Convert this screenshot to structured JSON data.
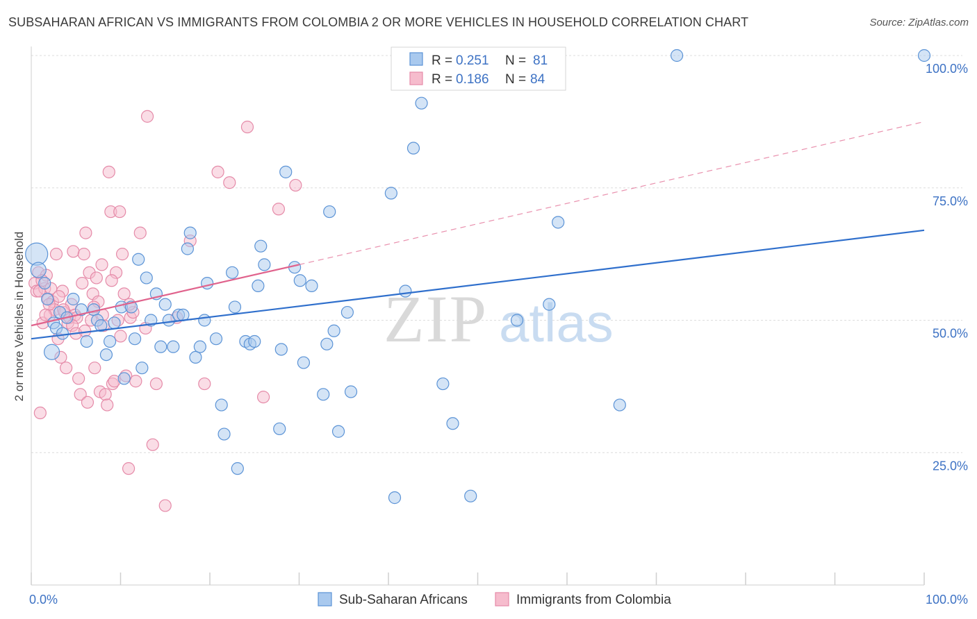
{
  "header": {
    "title": "SUBSAHARAN AFRICAN VS IMMIGRANTS FROM COLOMBIA 2 OR MORE VEHICLES IN HOUSEHOLD CORRELATION CHART",
    "source": "Source: ZipAtlas.com"
  },
  "watermark": {
    "part1": "ZIP",
    "part2": "atlas"
  },
  "colors": {
    "blue": "#5b93d6",
    "blue_fill": "#a9c9ee",
    "blue_line": "#2f6fcc",
    "pink": "#e58aa8",
    "pink_fill": "#f6bccd",
    "pink_line": "#e0628c",
    "grid": "#dcdcdc",
    "axis_text": "#3d72c4"
  },
  "legend": {
    "r_label": "R =",
    "n_label": "N =",
    "rows": [
      {
        "r": "0.251",
        "n": "81"
      },
      {
        "r": "0.186",
        "n": "84"
      }
    ]
  },
  "chart_data": {
    "type": "scatter",
    "title": "SUBSAHARAN AFRICAN VS IMMIGRANTS FROM COLOMBIA 2 OR MORE VEHICLES IN HOUSEHOLD CORRELATION CHART",
    "xlabel": "",
    "ylabel": "2 or more Vehicles in Household",
    "xlim": [
      0,
      100
    ],
    "ylim": [
      0,
      102
    ],
    "x_tick_labels": [
      "0.0%",
      "100.0%"
    ],
    "y_ticks": [
      25,
      50,
      75,
      100
    ],
    "y_tick_labels": [
      "25.0%",
      "50.0%",
      "75.0%",
      "100.0%"
    ],
    "grid": true,
    "legend_position": "top-center",
    "series": [
      {
        "name": "Sub-Saharan Africans",
        "r": 0.251,
        "n": 81,
        "trend": {
          "x": [
            0,
            100
          ],
          "y": [
            46.5,
            67.0
          ]
        },
        "points": [
          {
            "x": 0.6,
            "y": 62.5,
            "s": 3
          },
          {
            "x": 0.8,
            "y": 59.5,
            "s": 2
          },
          {
            "x": 1.5,
            "y": 57.0
          },
          {
            "x": 1.8,
            "y": 54.0
          },
          {
            "x": 2.3,
            "y": 44.0,
            "s": 2
          },
          {
            "x": 2.5,
            "y": 49.5
          },
          {
            "x": 2.8,
            "y": 48.5
          },
          {
            "x": 3.2,
            "y": 51.5
          },
          {
            "x": 3.5,
            "y": 47.5
          },
          {
            "x": 4.0,
            "y": 50.5
          },
          {
            "x": 4.7,
            "y": 54.0
          },
          {
            "x": 5.6,
            "y": 52.0
          },
          {
            "x": 6.2,
            "y": 46.0
          },
          {
            "x": 7.0,
            "y": 52.0
          },
          {
            "x": 7.4,
            "y": 50.0
          },
          {
            "x": 7.8,
            "y": 49.0
          },
          {
            "x": 8.4,
            "y": 43.5
          },
          {
            "x": 8.8,
            "y": 46.0
          },
          {
            "x": 9.3,
            "y": 49.5
          },
          {
            "x": 10.1,
            "y": 52.5
          },
          {
            "x": 10.4,
            "y": 39.0
          },
          {
            "x": 11.2,
            "y": 52.5
          },
          {
            "x": 11.6,
            "y": 46.5
          },
          {
            "x": 12.0,
            "y": 61.5
          },
          {
            "x": 12.4,
            "y": 41.0
          },
          {
            "x": 12.9,
            "y": 58.0
          },
          {
            "x": 13.4,
            "y": 50.0
          },
          {
            "x": 14.0,
            "y": 55.0
          },
          {
            "x": 14.5,
            "y": 45.0
          },
          {
            "x": 15.0,
            "y": 53.0
          },
          {
            "x": 15.4,
            "y": 50.0
          },
          {
            "x": 15.9,
            "y": 45.0
          },
          {
            "x": 16.5,
            "y": 51.0
          },
          {
            "x": 17.0,
            "y": 51.0
          },
          {
            "x": 17.5,
            "y": 63.5
          },
          {
            "x": 17.8,
            "y": 66.5
          },
          {
            "x": 18.4,
            "y": 43.0
          },
          {
            "x": 18.9,
            "y": 45.0
          },
          {
            "x": 19.4,
            "y": 50.0
          },
          {
            "x": 19.7,
            "y": 57.0
          },
          {
            "x": 20.7,
            "y": 46.5
          },
          {
            "x": 21.3,
            "y": 34.0
          },
          {
            "x": 21.6,
            "y": 28.5
          },
          {
            "x": 22.5,
            "y": 59.0
          },
          {
            "x": 22.8,
            "y": 52.5
          },
          {
            "x": 23.1,
            "y": 22.0
          },
          {
            "x": 24.0,
            "y": 46.0
          },
          {
            "x": 24.5,
            "y": 45.5
          },
          {
            "x": 25.0,
            "y": 46.0
          },
          {
            "x": 25.4,
            "y": 56.5
          },
          {
            "x": 25.7,
            "y": 64.0
          },
          {
            "x": 26.1,
            "y": 60.5
          },
          {
            "x": 27.8,
            "y": 29.5
          },
          {
            "x": 28.0,
            "y": 44.5
          },
          {
            "x": 28.5,
            "y": 78.0
          },
          {
            "x": 29.5,
            "y": 60.0
          },
          {
            "x": 30.1,
            "y": 57.5
          },
          {
            "x": 30.5,
            "y": 42.0
          },
          {
            "x": 31.4,
            "y": 56.5
          },
          {
            "x": 32.7,
            "y": 36.0
          },
          {
            "x": 33.1,
            "y": 45.5
          },
          {
            "x": 33.4,
            "y": 70.5
          },
          {
            "x": 33.9,
            "y": 48.0
          },
          {
            "x": 34.4,
            "y": 29.0
          },
          {
            "x": 35.4,
            "y": 51.5
          },
          {
            "x": 35.8,
            "y": 36.5
          },
          {
            "x": 40.3,
            "y": 74.0
          },
          {
            "x": 40.7,
            "y": 16.5
          },
          {
            "x": 41.9,
            "y": 55.5
          },
          {
            "x": 42.8,
            "y": 82.5
          },
          {
            "x": 43.7,
            "y": 91.0
          },
          {
            "x": 46.1,
            "y": 38.0
          },
          {
            "x": 47.2,
            "y": 30.5
          },
          {
            "x": 49.2,
            "y": 16.8
          },
          {
            "x": 54.4,
            "y": 50.0
          },
          {
            "x": 58.0,
            "y": 53.0
          },
          {
            "x": 59.0,
            "y": 68.5
          },
          {
            "x": 65.9,
            "y": 34.0
          },
          {
            "x": 72.3,
            "y": 100.0
          },
          {
            "x": 100.0,
            "y": 100.0
          }
        ]
      },
      {
        "name": "Immigrants from Colombia",
        "r": 0.186,
        "n": 84,
        "trend": {
          "x": [
            0,
            30
          ],
          "y": [
            49.0,
            60.5
          ],
          "dashed_to": {
            "x": 100,
            "y": 87.5
          }
        },
        "points": [
          {
            "x": 0.4,
            "y": 57.0
          },
          {
            "x": 0.6,
            "y": 55.5
          },
          {
            "x": 0.8,
            "y": 59.0
          },
          {
            "x": 1.0,
            "y": 32.5
          },
          {
            "x": 1.3,
            "y": 49.5
          },
          {
            "x": 1.5,
            "y": 56.0
          },
          {
            "x": 1.7,
            "y": 58.5
          },
          {
            "x": 1.9,
            "y": 54.0
          },
          {
            "x": 2.1,
            "y": 51.0
          },
          {
            "x": 2.4,
            "y": 53.5
          },
          {
            "x": 2.6,
            "y": 52.0
          },
          {
            "x": 2.8,
            "y": 62.5
          },
          {
            "x": 3.0,
            "y": 46.5
          },
          {
            "x": 3.3,
            "y": 43.0
          },
          {
            "x": 3.5,
            "y": 55.5
          },
          {
            "x": 3.7,
            "y": 51.5
          },
          {
            "x": 3.9,
            "y": 41.0
          },
          {
            "x": 4.1,
            "y": 49.5
          },
          {
            "x": 4.3,
            "y": 50.5
          },
          {
            "x": 4.5,
            "y": 53.0
          },
          {
            "x": 4.7,
            "y": 63.0
          },
          {
            "x": 4.9,
            "y": 51.0
          },
          {
            "x": 5.1,
            "y": 50.5
          },
          {
            "x": 5.3,
            "y": 39.0
          },
          {
            "x": 5.5,
            "y": 36.0
          },
          {
            "x": 5.7,
            "y": 57.0
          },
          {
            "x": 5.9,
            "y": 62.5
          },
          {
            "x": 6.1,
            "y": 66.5
          },
          {
            "x": 6.3,
            "y": 34.5
          },
          {
            "x": 6.5,
            "y": 59.0
          },
          {
            "x": 6.7,
            "y": 50.0
          },
          {
            "x": 6.9,
            "y": 55.0
          },
          {
            "x": 7.1,
            "y": 41.0
          },
          {
            "x": 7.3,
            "y": 58.0
          },
          {
            "x": 7.5,
            "y": 53.5
          },
          {
            "x": 7.7,
            "y": 36.5
          },
          {
            "x": 7.9,
            "y": 60.5
          },
          {
            "x": 8.1,
            "y": 49.0
          },
          {
            "x": 8.3,
            "y": 36.0
          },
          {
            "x": 8.5,
            "y": 34.0
          },
          {
            "x": 8.7,
            "y": 78.0
          },
          {
            "x": 8.9,
            "y": 70.5
          },
          {
            "x": 9.1,
            "y": 38.0
          },
          {
            "x": 9.3,
            "y": 38.5
          },
          {
            "x": 9.5,
            "y": 59.0
          },
          {
            "x": 9.7,
            "y": 50.0
          },
          {
            "x": 9.9,
            "y": 70.5
          },
          {
            "x": 10.2,
            "y": 62.5
          },
          {
            "x": 10.4,
            "y": 55.0
          },
          {
            "x": 10.6,
            "y": 39.5
          },
          {
            "x": 10.9,
            "y": 22.0
          },
          {
            "x": 11.1,
            "y": 50.5
          },
          {
            "x": 11.4,
            "y": 51.5
          },
          {
            "x": 11.7,
            "y": 38.5
          },
          {
            "x": 12.2,
            "y": 66.5
          },
          {
            "x": 12.8,
            "y": 48.5
          },
          {
            "x": 13.0,
            "y": 88.5
          },
          {
            "x": 13.6,
            "y": 26.5
          },
          {
            "x": 14.0,
            "y": 38.0
          },
          {
            "x": 15.0,
            "y": 15.0
          },
          {
            "x": 16.3,
            "y": 50.5
          },
          {
            "x": 17.8,
            "y": 65.0
          },
          {
            "x": 19.4,
            "y": 38.0
          },
          {
            "x": 20.9,
            "y": 78.0
          },
          {
            "x": 22.2,
            "y": 76.0
          },
          {
            "x": 24.2,
            "y": 86.5
          },
          {
            "x": 26.0,
            "y": 35.5
          },
          {
            "x": 27.7,
            "y": 71.0
          },
          {
            "x": 29.6,
            "y": 75.5
          },
          {
            "x": 0.9,
            "y": 55.5
          },
          {
            "x": 1.2,
            "y": 57.5
          },
          {
            "x": 2.0,
            "y": 53.0
          },
          {
            "x": 3.6,
            "y": 52.0
          },
          {
            "x": 4.6,
            "y": 49.0
          },
          {
            "x": 5.0,
            "y": 47.5
          },
          {
            "x": 6.0,
            "y": 48.0
          },
          {
            "x": 7.0,
            "y": 52.5
          },
          {
            "x": 8.0,
            "y": 51.0
          },
          {
            "x": 9.0,
            "y": 57.5
          },
          {
            "x": 10.0,
            "y": 47.0
          },
          {
            "x": 11.0,
            "y": 53.0
          },
          {
            "x": 1.6,
            "y": 51.0
          },
          {
            "x": 2.2,
            "y": 56.0
          },
          {
            "x": 3.1,
            "y": 54.5
          }
        ]
      }
    ]
  }
}
